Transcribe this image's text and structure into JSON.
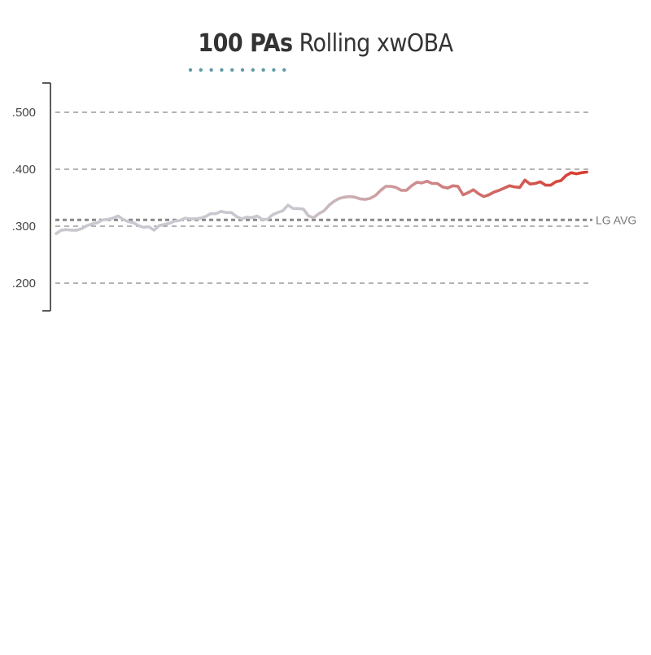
{
  "chart_data": {
    "type": "line",
    "title_bold": "100 PAs",
    "title_rest": "Rolling xwOBA",
    "ylim": [
      0.16,
      0.55
    ],
    "y_ticks": [
      {
        "value": 0.5,
        "label": ".500"
      },
      {
        "value": 0.4,
        "label": ".400"
      },
      {
        "value": 0.3,
        "label": ".300"
      },
      {
        "value": 0.2,
        "label": ".200"
      }
    ],
    "reference_line": {
      "value": 0.311,
      "label": "LG AVG"
    },
    "grid": true,
    "colors": {
      "line_start": "#c8c8d0",
      "line_end": "#d63a2f",
      "grid": "#888888",
      "reference": "#888888",
      "title_underline": "#5f9aa8",
      "axis": "#333333"
    },
    "series": [
      {
        "values": [
          0.287,
          0.293,
          0.294,
          0.293,
          0.293,
          0.296,
          0.301,
          0.304,
          0.306,
          0.311,
          0.312,
          0.314,
          0.318,
          0.312,
          0.308,
          0.306,
          0.301,
          0.298,
          0.299,
          0.293,
          0.301,
          0.303,
          0.305,
          0.309,
          0.31,
          0.314,
          0.313,
          0.313,
          0.314,
          0.317,
          0.322,
          0.322,
          0.326,
          0.324,
          0.324,
          0.317,
          0.313,
          0.316,
          0.315,
          0.318,
          0.312,
          0.312,
          0.32,
          0.324,
          0.327,
          0.337,
          0.331,
          0.331,
          0.33,
          0.318,
          0.315,
          0.322,
          0.327,
          0.337,
          0.344,
          0.349,
          0.351,
          0.352,
          0.351,
          0.348,
          0.347,
          0.349,
          0.354,
          0.363,
          0.37,
          0.37,
          0.368,
          0.363,
          0.363,
          0.371,
          0.377,
          0.376,
          0.379,
          0.375,
          0.375,
          0.369,
          0.367,
          0.371,
          0.37,
          0.355,
          0.359,
          0.364,
          0.357,
          0.352,
          0.355,
          0.36,
          0.363,
          0.367,
          0.371,
          0.369,
          0.368,
          0.381,
          0.374,
          0.375,
          0.378,
          0.372,
          0.372,
          0.378,
          0.38,
          0.389,
          0.394,
          0.392,
          0.394,
          0.395
        ]
      }
    ]
  }
}
